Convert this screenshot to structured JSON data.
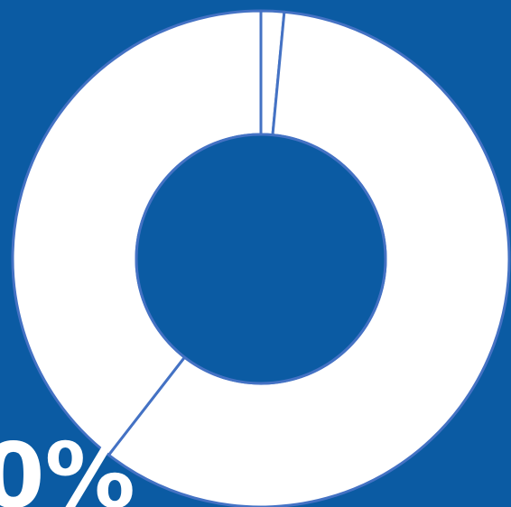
{
  "chart_data": {
    "type": "pie",
    "style": "donut",
    "title": "",
    "series": [
      {
        "values": [
          1.5,
          59.0,
          39.5
        ]
      }
    ],
    "legend": false,
    "annotations": [
      "0%"
    ]
  },
  "colors": {
    "background": "#0B5BA3",
    "slice_fill": "#FFFFFF",
    "slice_stroke": "#4472C4",
    "label_text": "#FFFFFF"
  }
}
